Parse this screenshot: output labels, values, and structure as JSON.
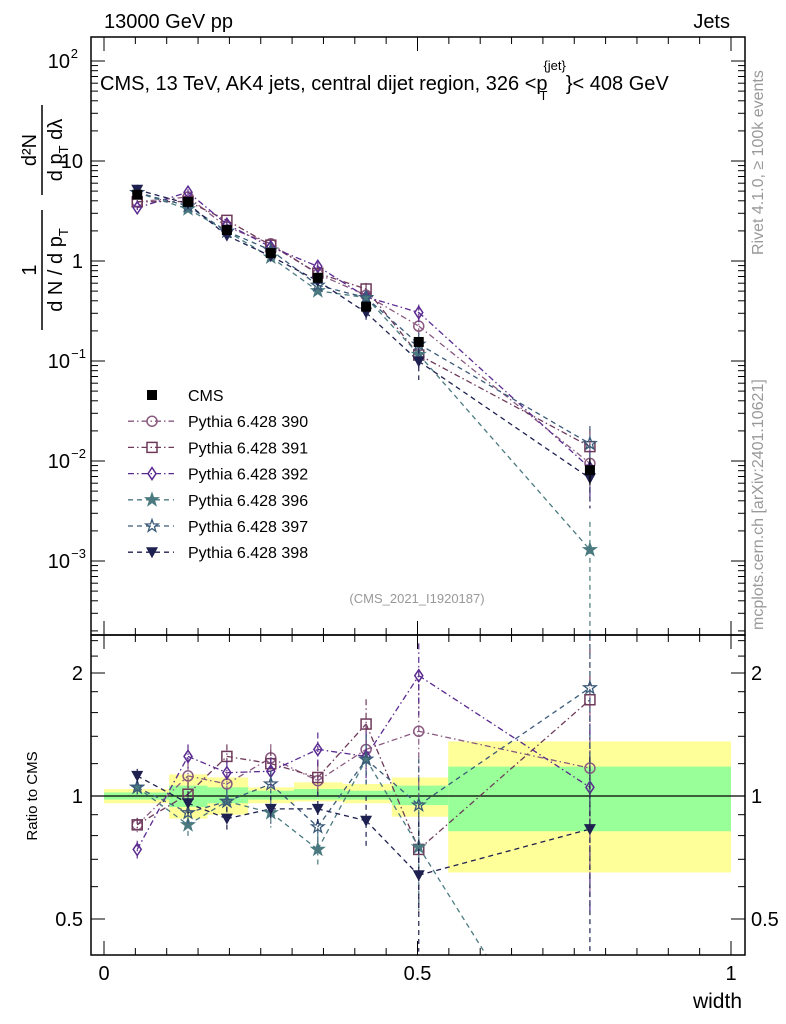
{
  "header": {
    "left": "13000 GeV pp",
    "right": "Jets"
  },
  "side": {
    "rivet": "Rivet 4.1.0, ≥ 100k events",
    "mcplots": "mcplots.cern.ch [arXiv:2401.10621]"
  },
  "chart_data": {
    "type": "line",
    "title": "CMS, 13 TeV, AK4 jets, central dijet region, 326 <p_T^{jet}< 408 GeV",
    "title_parts": {
      "main": "CMS, 13 TeV, AK4 jets, central dijet region, 326 <p",
      "sup": "{jet}",
      "sub": "T",
      "end": "}< 408 GeV"
    },
    "analysis": "(CMS_2021_I1920187)",
    "xlabel": "width",
    "ylabel": {
      "num1": "1",
      "den1": "d N / d p",
      "den1_sub": "T",
      "num2": "d²N",
      "den2": "d p",
      "den2_sub": "T",
      "den2_end": " dλ"
    },
    "ratio_ylabel": "Ratio to CMS",
    "xlim": [
      0,
      1
    ],
    "ylim": [
      0.00018,
      175
    ],
    "ratio_ylim": [
      0.41,
      2.45
    ],
    "yscale": "log",
    "ratio_yscale": "log",
    "x_ticklabels": [
      {
        "v": 0,
        "l": "0"
      },
      {
        "v": 0.5,
        "l": "0.5"
      },
      {
        "v": 1,
        "l": "1"
      }
    ],
    "y_ticklabels": [
      {
        "e": 2,
        "l": "10",
        "s": "2"
      },
      {
        "e": 1,
        "l": "10",
        "s": ""
      },
      {
        "e": 0,
        "l": "1",
        "s": ""
      },
      {
        "e": -1,
        "l": "10",
        "s": "−1"
      },
      {
        "e": -2,
        "l": "10",
        "s": "−2"
      },
      {
        "e": -3,
        "l": "10",
        "s": "−3"
      }
    ],
    "ratio_ticklabels": [
      {
        "v": 2,
        "l": "2"
      },
      {
        "v": 1,
        "l": "1"
      },
      {
        "v": 0.5,
        "l": "0.5"
      }
    ],
    "legend_position": "middle-left",
    "bin_edges": [
      0,
      0.104,
      0.165,
      0.23,
      0.303,
      0.381,
      0.459,
      0.549,
      1.0
    ],
    "x": [
      0.053,
      0.134,
      0.196,
      0.266,
      0.341,
      0.418,
      0.502,
      0.775
    ],
    "cms": {
      "name": "CMS",
      "values": [
        4.6,
        3.9,
        2.04,
        1.2,
        0.68,
        0.35,
        0.155,
        0.0081
      ],
      "rel_err": [
        0.03,
        0.05,
        0.05,
        0.04,
        0.05,
        0.05,
        0.1,
        0.3
      ]
    },
    "band_stat": [
      [
        0.98,
        1.02
      ],
      [
        0.94,
        1.06
      ],
      [
        0.96,
        1.05
      ],
      [
        0.98,
        1.03
      ],
      [
        0.98,
        1.04
      ],
      [
        0.98,
        1.03
      ],
      [
        0.95,
        1.06
      ],
      [
        0.82,
        1.18
      ]
    ],
    "band_total": [
      [
        0.96,
        1.04
      ],
      [
        0.88,
        1.13
      ],
      [
        0.9,
        1.11
      ],
      [
        0.96,
        1.05
      ],
      [
        0.97,
        1.08
      ],
      [
        0.96,
        1.07
      ],
      [
        0.89,
        1.11
      ],
      [
        0.65,
        1.36
      ]
    ],
    "series": [
      {
        "name": "Pythia 6.428 390",
        "color": "#8a5a80",
        "marker": "circle",
        "line": "dashdot",
        "ratio": [
          0.85,
          1.12,
          1.07,
          1.24,
          1.09,
          1.3,
          1.44,
          1.17
        ],
        "rel_err": [
          0.04,
          0.07,
          0.07,
          0.08,
          0.1,
          0.15,
          0.3,
          0.5
        ]
      },
      {
        "name": "Pythia 6.428 391",
        "color": "#6e3a5a",
        "marker": "square",
        "line": "dashdot",
        "ratio": [
          0.85,
          1.01,
          1.25,
          1.2,
          1.11,
          1.5,
          0.74,
          1.72
        ],
        "rel_err": [
          0.04,
          0.07,
          0.07,
          0.08,
          0.1,
          0.15,
          0.3,
          0.5
        ]
      },
      {
        "name": "Pythia 6.428 392",
        "color": "#5a2a90",
        "marker": "diamond",
        "line": "dashdot",
        "ratio": [
          0.74,
          1.25,
          1.14,
          1.15,
          1.3,
          1.25,
          1.97,
          1.05
        ],
        "rel_err": [
          0.05,
          0.07,
          0.07,
          0.08,
          0.1,
          0.15,
          0.2,
          0.5
        ]
      },
      {
        "name": "Pythia 6.428 396",
        "color": "#4a7a80",
        "marker": "star-filled",
        "line": "dashed",
        "ratio": [
          1.05,
          0.85,
          0.97,
          0.91,
          0.74,
          1.23,
          0.75,
          0.16
        ],
        "rel_err": [
          0.04,
          0.07,
          0.07,
          0.08,
          0.1,
          0.15,
          0.3,
          0.9
        ]
      },
      {
        "name": "Pythia 6.428 397",
        "color": "#3a5a78",
        "marker": "star-open",
        "line": "dashed",
        "ratio": [
          1.05,
          0.91,
          0.97,
          1.07,
          0.84,
          1.23,
          0.95,
          1.84
        ],
        "rel_err": [
          0.04,
          0.07,
          0.07,
          0.08,
          0.1,
          0.15,
          0.3,
          0.5
        ]
      },
      {
        "name": "Pythia 6.428 398",
        "color": "#1e2050",
        "marker": "triangle-down",
        "line": "dashed",
        "ratio": [
          1.12,
          0.96,
          0.88,
          0.93,
          0.93,
          0.87,
          0.64,
          0.83
        ],
        "rel_err": [
          0.04,
          0.07,
          0.07,
          0.08,
          0.1,
          0.15,
          0.35,
          0.5
        ]
      }
    ]
  }
}
